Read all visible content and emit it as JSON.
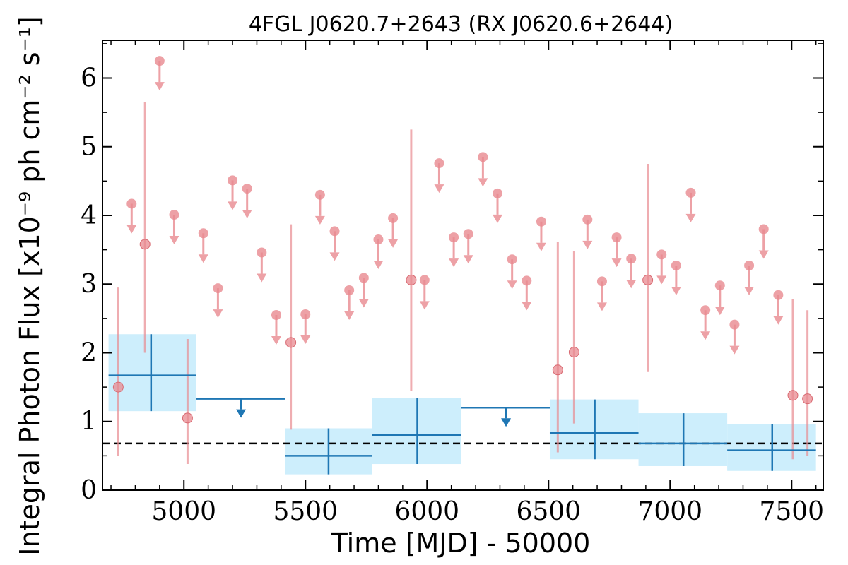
{
  "chart_data": {
    "type": "scatter",
    "title": "4FGL J0620.7+2643 (RX J0620.6+2644)",
    "xlabel": "Time [MJD] - 50000",
    "ylabel": "Integral Photon Flux [x10⁻⁹ ph cm⁻² s⁻¹]",
    "xlim": [
      4665,
      7630
    ],
    "ylim": [
      0,
      6.55
    ],
    "xticks": [
      5000,
      5500,
      6000,
      6500,
      7000,
      7500
    ],
    "yticks": [
      0,
      1,
      2,
      3,
      4,
      5,
      6
    ],
    "grid": false,
    "reference_line": {
      "y": 0.68,
      "style": "dashed",
      "color": "#000000"
    },
    "colors": {
      "short_bins": "#e88a90",
      "long_bins": "#1f77b4",
      "long_band": "#cdeefc"
    },
    "series": [
      {
        "binning": "short",
        "detections": [
          {
            "x": 4730,
            "y": 1.5,
            "ylo": 0.5,
            "yhi": 2.95
          },
          {
            "x": 4840,
            "y": 3.58,
            "ylo": 2.0,
            "yhi": 5.65
          },
          {
            "x": 5015,
            "y": 1.05,
            "ylo": 0.38,
            "yhi": 2.2
          },
          {
            "x": 5440,
            "y": 2.15,
            "ylo": 0.88,
            "yhi": 3.87
          },
          {
            "x": 5935,
            "y": 3.06,
            "ylo": 1.45,
            "yhi": 5.25
          },
          {
            "x": 6538,
            "y": 1.75,
            "ylo": 0.55,
            "yhi": 3.62
          },
          {
            "x": 6605,
            "y": 2.01,
            "ylo": 0.97,
            "yhi": 3.48
          },
          {
            "x": 6908,
            "y": 3.06,
            "ylo": 1.72,
            "yhi": 4.75
          },
          {
            "x": 7505,
            "y": 1.38,
            "ylo": 0.45,
            "yhi": 2.78
          },
          {
            "x": 7565,
            "y": 1.33,
            "ylo": 0.5,
            "yhi": 2.62
          }
        ],
        "upper_limits": [
          {
            "x": 4785,
            "y": 4.17
          },
          {
            "x": 4900,
            "y": 6.25
          },
          {
            "x": 4960,
            "y": 4.01
          },
          {
            "x": 5080,
            "y": 3.74
          },
          {
            "x": 5140,
            "y": 2.94
          },
          {
            "x": 5200,
            "y": 4.51
          },
          {
            "x": 5260,
            "y": 4.39
          },
          {
            "x": 5320,
            "y": 3.46
          },
          {
            "x": 5380,
            "y": 2.55
          },
          {
            "x": 5500,
            "y": 2.56
          },
          {
            "x": 5560,
            "y": 4.3
          },
          {
            "x": 5620,
            "y": 3.77
          },
          {
            "x": 5680,
            "y": 2.91
          },
          {
            "x": 5740,
            "y": 3.09
          },
          {
            "x": 5800,
            "y": 3.65
          },
          {
            "x": 5860,
            "y": 3.96
          },
          {
            "x": 5990,
            "y": 3.06
          },
          {
            "x": 6050,
            "y": 4.76
          },
          {
            "x": 6110,
            "y": 3.68
          },
          {
            "x": 6170,
            "y": 3.73
          },
          {
            "x": 6230,
            "y": 4.85
          },
          {
            "x": 6290,
            "y": 4.32
          },
          {
            "x": 6350,
            "y": 3.36
          },
          {
            "x": 6410,
            "y": 3.05
          },
          {
            "x": 6470,
            "y": 3.91
          },
          {
            "x": 6660,
            "y": 3.94
          },
          {
            "x": 6720,
            "y": 3.04
          },
          {
            "x": 6780,
            "y": 3.68
          },
          {
            "x": 6840,
            "y": 3.37
          },
          {
            "x": 6965,
            "y": 3.43
          },
          {
            "x": 7025,
            "y": 3.27
          },
          {
            "x": 7085,
            "y": 4.33
          },
          {
            "x": 7145,
            "y": 2.62
          },
          {
            "x": 7205,
            "y": 2.98
          },
          {
            "x": 7265,
            "y": 2.41
          },
          {
            "x": 7325,
            "y": 3.27
          },
          {
            "x": 7385,
            "y": 3.8
          },
          {
            "x": 7445,
            "y": 2.84
          }
        ]
      },
      {
        "binning": "long",
        "detections": [
          {
            "x": 4865,
            "xlo": 4690,
            "xhi": 5050,
            "y": 1.67,
            "ylo": 1.15,
            "yhi": 2.27
          },
          {
            "x": 5595,
            "xlo": 5415,
            "xhi": 5775,
            "y": 0.5,
            "ylo": 0.23,
            "yhi": 0.9
          },
          {
            "x": 5960,
            "xlo": 5775,
            "xhi": 6140,
            "y": 0.8,
            "ylo": 0.38,
            "yhi": 1.34
          },
          {
            "x": 6690,
            "xlo": 6505,
            "xhi": 6870,
            "y": 0.83,
            "ylo": 0.45,
            "yhi": 1.32
          },
          {
            "x": 7055,
            "xlo": 6870,
            "xhi": 7235,
            "y": 0.68,
            "ylo": 0.35,
            "yhi": 1.12
          },
          {
            "x": 7420,
            "xlo": 7235,
            "xhi": 7600,
            "y": 0.58,
            "ylo": 0.28,
            "yhi": 0.96
          }
        ],
        "upper_limits": [
          {
            "x": 5235,
            "xlo": 5050,
            "xhi": 5415,
            "y": 1.33
          },
          {
            "x": 6325,
            "xlo": 6140,
            "xhi": 6505,
            "y": 1.2
          }
        ]
      }
    ]
  }
}
